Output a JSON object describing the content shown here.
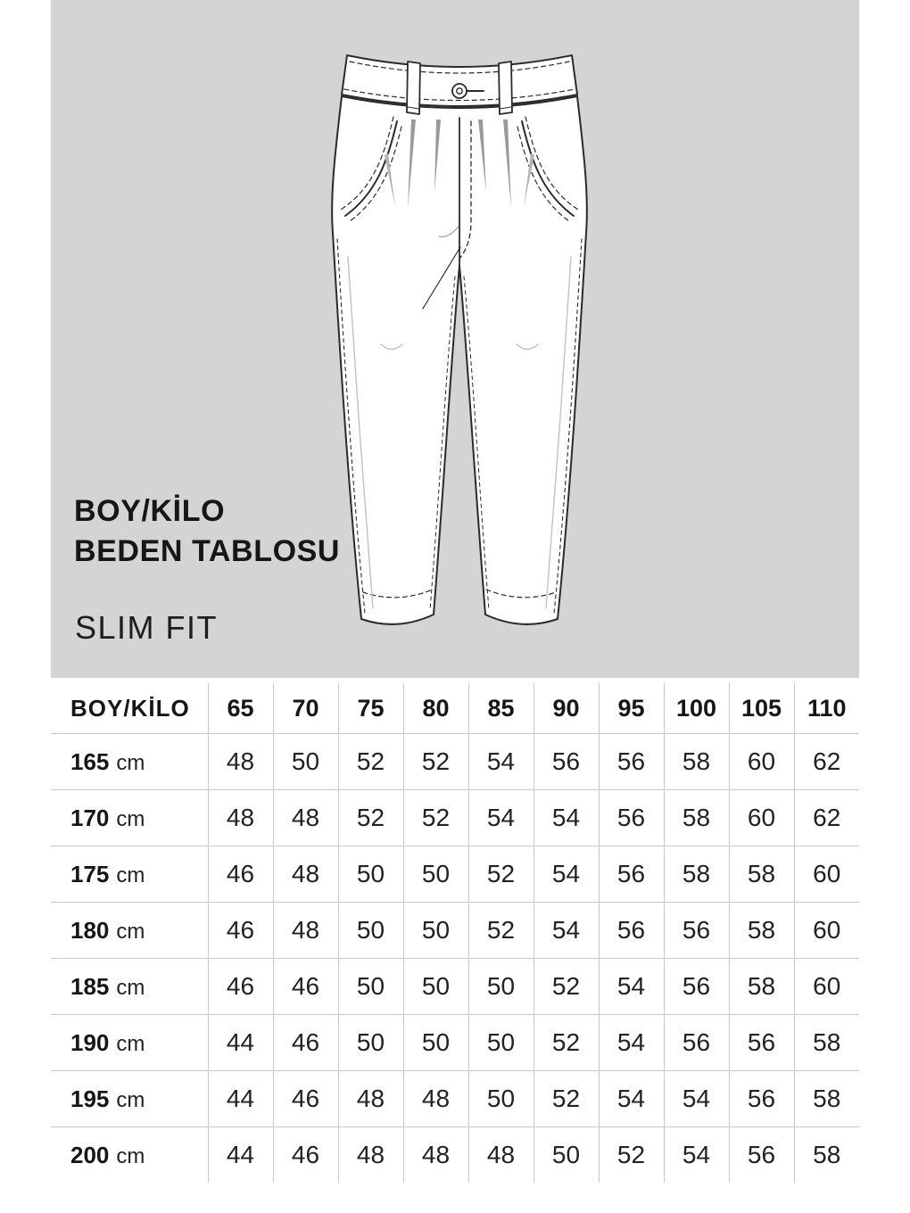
{
  "banner": {
    "title_lines": [
      "BOY/KİLO",
      "BEDEN TABLOSU"
    ],
    "subtitle": "SLIM FIT",
    "drawing": "slim-fit-trousers-technical-flat-sketch",
    "bg_color": "#d4d4d4"
  },
  "chart_data": {
    "type": "table",
    "title": "BOY/KİLO BEDEN TABLOSU",
    "fit_label": "SLIM FIT",
    "corner_label": "BOY/KİLO",
    "row_unit": "cm",
    "columns_kilo": [
      "65",
      "70",
      "75",
      "80",
      "85",
      "90",
      "95",
      "100",
      "105",
      "110"
    ],
    "rows_boy_cm": [
      "165",
      "170",
      "175",
      "180",
      "185",
      "190",
      "195",
      "200"
    ],
    "sizes": [
      [
        48,
        50,
        52,
        52,
        54,
        56,
        56,
        58,
        60,
        62
      ],
      [
        48,
        48,
        52,
        52,
        54,
        54,
        56,
        58,
        60,
        62
      ],
      [
        46,
        48,
        50,
        50,
        52,
        54,
        56,
        58,
        58,
        60
      ],
      [
        46,
        48,
        50,
        50,
        52,
        54,
        56,
        56,
        58,
        60
      ],
      [
        46,
        46,
        50,
        50,
        50,
        52,
        54,
        56,
        58,
        60
      ],
      [
        44,
        46,
        50,
        50,
        50,
        52,
        54,
        56,
        56,
        58
      ],
      [
        44,
        46,
        48,
        48,
        50,
        52,
        54,
        54,
        56,
        58
      ],
      [
        44,
        46,
        48,
        48,
        48,
        50,
        52,
        54,
        56,
        58
      ]
    ]
  },
  "colors": {
    "banner_bg": "#d4d4d4",
    "table_divider": "#c9c9c9",
    "text": "#161616",
    "sketch_line": "#2b2b2b"
  }
}
